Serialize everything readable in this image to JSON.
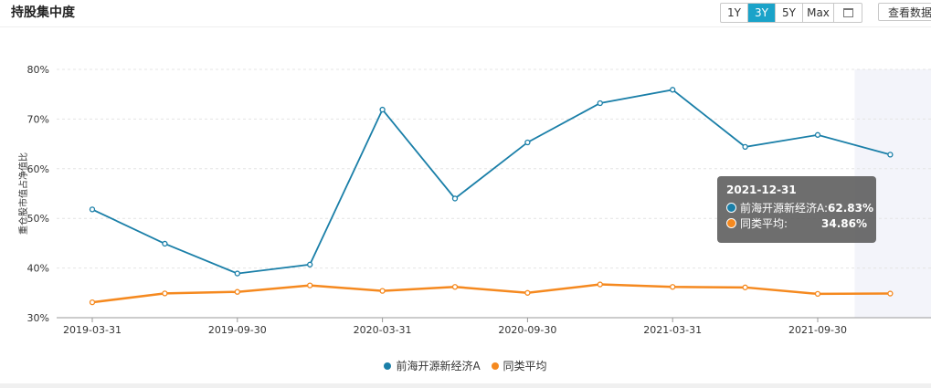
{
  "header": {
    "title": "持股集中度",
    "range_buttons": [
      "1Y",
      "3Y",
      "5Y",
      "Max"
    ],
    "active_range": "3Y",
    "calendar_icon": "calendar-icon",
    "view_data_label": "查看数据"
  },
  "colors": {
    "series1": "#1a7fa8",
    "series2": "#f5891f",
    "active_button": "#1aa3c9"
  },
  "tooltip": {
    "date": "2021-12-31",
    "rows": [
      {
        "name": "前海开源新经济A:",
        "value": "62.83%"
      },
      {
        "name": "同类平均:",
        "value": "34.86%"
      }
    ]
  },
  "chart_data": {
    "type": "line",
    "ylabel": "重仓股市值占净值比",
    "xlabel": "",
    "ylim": [
      30,
      80
    ],
    "yticks": [
      "30%",
      "40%",
      "50%",
      "60%",
      "70%",
      "80%"
    ],
    "x": [
      "2019-03-31",
      "2019-06-30",
      "2019-09-30",
      "2019-12-31",
      "2020-03-31",
      "2020-06-30",
      "2020-09-30",
      "2020-12-31",
      "2021-03-31",
      "2021-06-30",
      "2021-09-30",
      "2021-12-31"
    ],
    "xtick_labels": [
      "2019-03-31",
      "2019-09-30",
      "2020-03-31",
      "2020-09-30",
      "2021-03-31",
      "2021-09-30"
    ],
    "series": [
      {
        "name": "前海开源新经济A",
        "values": [
          51.8,
          44.9,
          38.9,
          40.7,
          71.9,
          54.0,
          65.3,
          73.2,
          75.9,
          64.4,
          66.8,
          62.83
        ]
      },
      {
        "name": "同类平均",
        "values": [
          33.1,
          34.9,
          35.2,
          36.5,
          35.4,
          36.2,
          35.0,
          36.7,
          36.2,
          36.1,
          34.8,
          34.86
        ]
      }
    ],
    "grid": true,
    "highlighted_index": 11,
    "legend_position": "bottom"
  }
}
